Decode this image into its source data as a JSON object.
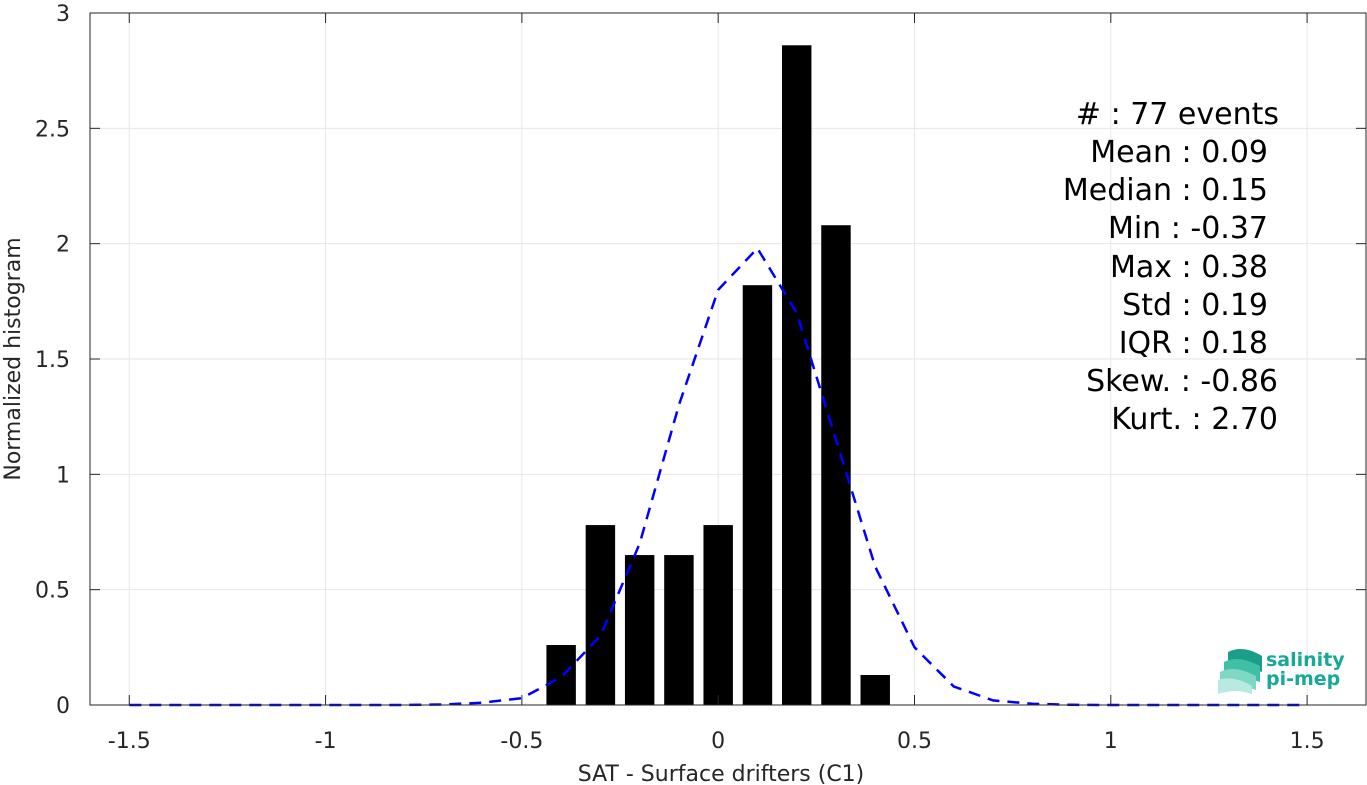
{
  "chart_data": {
    "type": "bar",
    "title": "",
    "xlabel": "SAT - Surface drifters (C1)",
    "ylabel": "Normalized histogram",
    "xlim": [
      -1.6,
      1.65
    ],
    "ylim": [
      0,
      3
    ],
    "grid": true,
    "x_ticks": [
      {
        "value": -1.5,
        "label": "-1.5"
      },
      {
        "value": -1,
        "label": "-1"
      },
      {
        "value": -0.5,
        "label": "-0.5"
      },
      {
        "value": 0,
        "label": "0"
      },
      {
        "value": 0.5,
        "label": "0.5"
      },
      {
        "value": 1,
        "label": "1"
      },
      {
        "value": 1.5,
        "label": "1.5"
      }
    ],
    "y_ticks": [
      {
        "value": 0,
        "label": "0"
      },
      {
        "value": 0.5,
        "label": "0.5"
      },
      {
        "value": 1,
        "label": "1"
      },
      {
        "value": 1.5,
        "label": "1.5"
      },
      {
        "value": 2,
        "label": "2"
      },
      {
        "value": 2.5,
        "label": "2.5"
      },
      {
        "value": 3,
        "label": "3"
      }
    ],
    "bar_width": 0.075,
    "bar_color": "#000000",
    "bars": [
      {
        "x": -0.4,
        "value": 0.26
      },
      {
        "x": -0.3,
        "value": 0.78
      },
      {
        "x": -0.2,
        "value": 0.65
      },
      {
        "x": -0.1,
        "value": 0.65
      },
      {
        "x": 0.0,
        "value": 0.78
      },
      {
        "x": 0.1,
        "value": 1.82
      },
      {
        "x": 0.2,
        "value": 2.86
      },
      {
        "x": 0.3,
        "value": 2.08
      },
      {
        "x": 0.4,
        "value": 0.13
      }
    ],
    "fit_curve": {
      "color": "#0000ff",
      "style": "dashed",
      "x": [
        -1.5,
        -1.4,
        -1.3,
        -1.2,
        -1.1,
        -1.0,
        -0.9,
        -0.8,
        -0.7,
        -0.6,
        -0.5,
        -0.4,
        -0.3,
        -0.2,
        -0.1,
        0.0,
        0.1,
        0.2,
        0.3,
        0.4,
        0.5,
        0.6,
        0.7,
        0.8,
        0.9,
        1.0,
        1.1,
        1.2,
        1.3,
        1.4,
        1.5
      ],
      "y": [
        0,
        0,
        0,
        0,
        0,
        0,
        0,
        0,
        0.002,
        0.01,
        0.03,
        0.12,
        0.3,
        0.7,
        1.3,
        1.8,
        1.98,
        1.7,
        1.15,
        0.6,
        0.25,
        0.08,
        0.02,
        0.005,
        0.001,
        0,
        0,
        0,
        0,
        0,
        0
      ]
    },
    "stats": [
      {
        "label": "#  : 77 events"
      },
      {
        "label": "Mean : 0.09"
      },
      {
        "label": "Median : 0.15"
      },
      {
        "label": "Min : -0.37"
      },
      {
        "label": "Max : 0.38"
      },
      {
        "label": "Std : 0.19"
      },
      {
        "label": "IQR : 0.18"
      },
      {
        "label": "Skew. : -0.86"
      },
      {
        "label": "Kurt. : 2.70"
      }
    ]
  },
  "logo": {
    "line1": "salinity",
    "line2": "pi-mep",
    "color": "#17a89a"
  }
}
